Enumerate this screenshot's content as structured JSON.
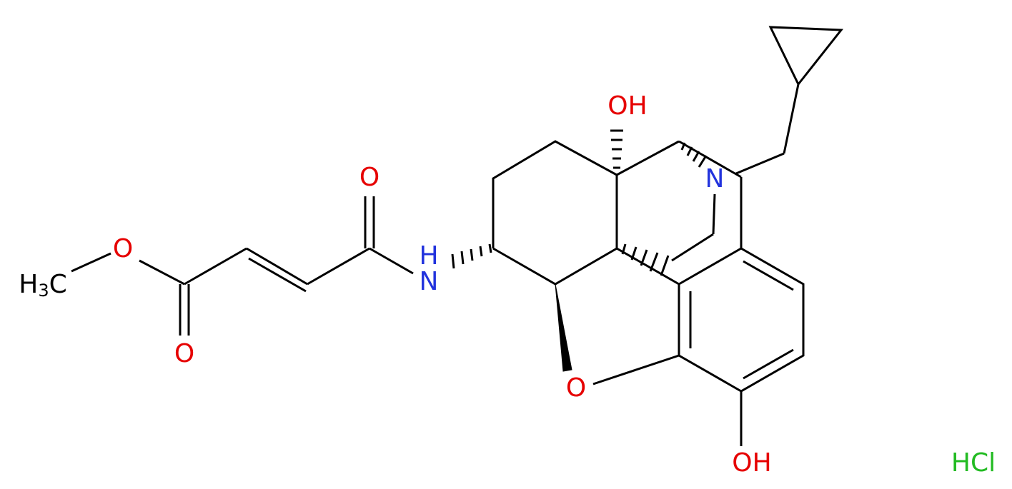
{
  "atoms": [
    {
      "label": "O"
    },
    {
      "label_parts": [
        "H",
        "3",
        "C"
      ]
    },
    {
      "label": "O"
    },
    {
      "label": "O"
    },
    {
      "label_parts": [
        "H",
        "N"
      ]
    },
    {
      "label": "OH"
    },
    {
      "label": "N"
    },
    {
      "label": "O"
    },
    {
      "label": "OH"
    }
  ],
  "salt": "HCl"
}
